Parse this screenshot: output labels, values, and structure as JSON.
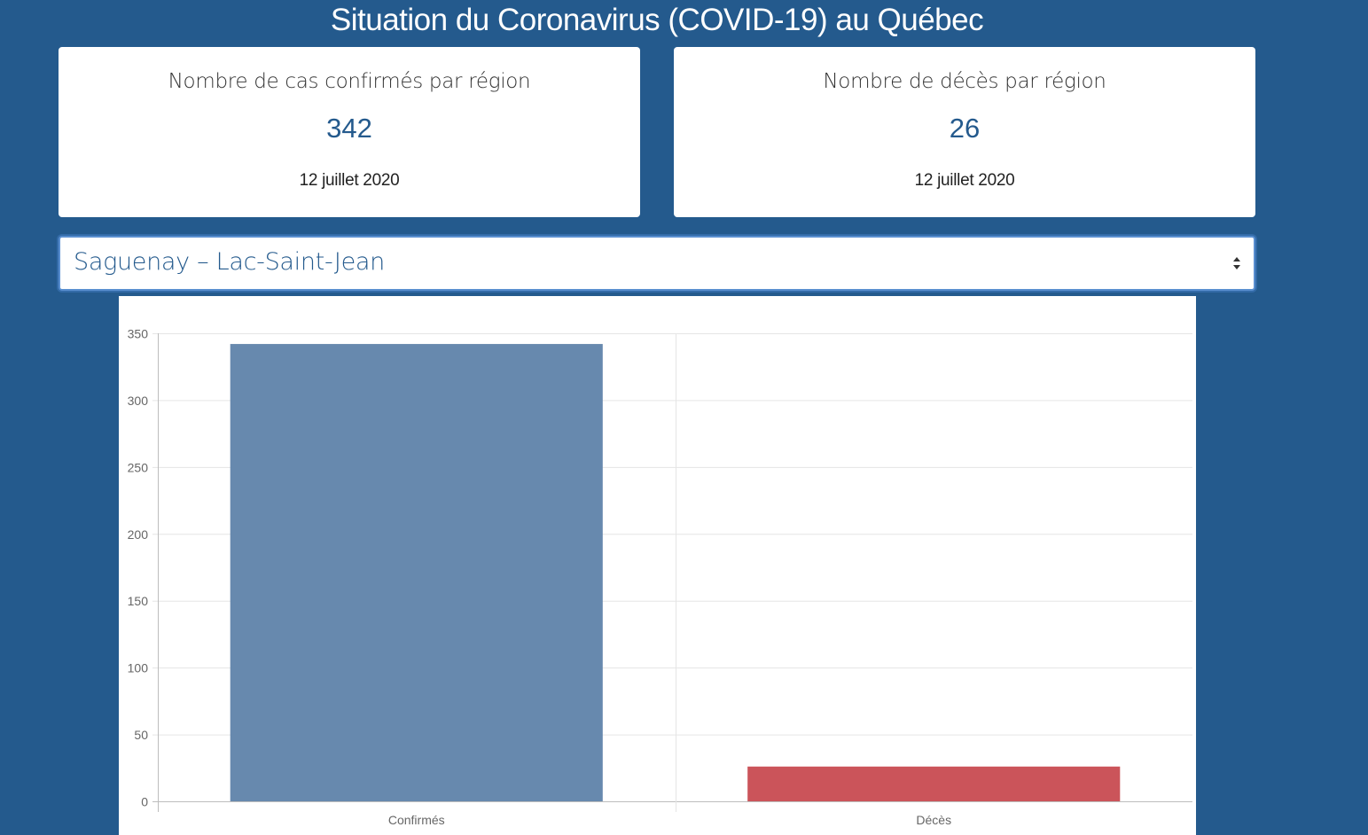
{
  "page": {
    "title": "Situation du Coronavirus (COVID-19) au Québec"
  },
  "cards": {
    "confirmed": {
      "title": "Nombre de cas confirmés par région",
      "value": "342",
      "date": "12 juillet 2020"
    },
    "deaths": {
      "title": "Nombre de décès par région",
      "value": "26",
      "date": "12 juillet 2020"
    }
  },
  "region_select": {
    "selected": "Saguenay – Lac-Saint-Jean",
    "icon": "select-arrows-icon"
  },
  "colors": {
    "background": "#245a8d",
    "accent": "#245a8d",
    "confirmed_bar": "#6789ae",
    "deaths_bar": "#cb545a"
  },
  "chart_data": {
    "type": "bar",
    "categories": [
      "Confirmés",
      "Décès"
    ],
    "values": [
      342,
      26
    ],
    "colors": [
      "#6789ae",
      "#cb545a"
    ],
    "title": "",
    "xlabel": "",
    "ylabel": "",
    "ylim": [
      0,
      350
    ],
    "yticks": [
      0,
      50,
      100,
      150,
      200,
      250,
      300,
      350
    ],
    "grid": true,
    "legend": "none"
  }
}
